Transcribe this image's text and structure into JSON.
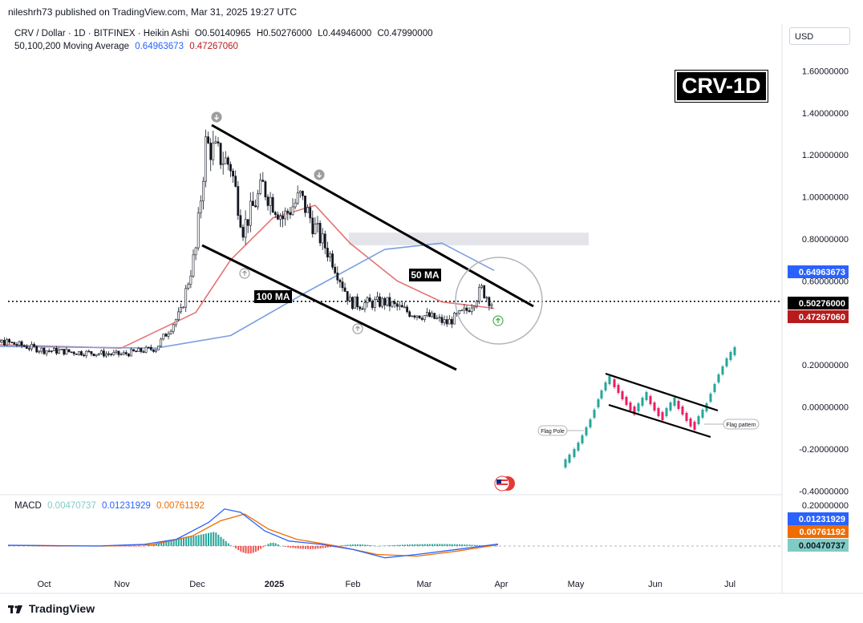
{
  "publisher_line": "nileshrh73 published on TradingView.com, Mar 31, 2025 19:27 UTC",
  "header": {
    "symbol": "CRV / Dollar · 1D · BITFINEX · Heikin Ashi",
    "open": "O0.50140965",
    "high": "H0.50276000",
    "low": "L0.44946000",
    "close": "C0.47990000",
    "ma_label": "50,100,200 Moving Average",
    "ma_value_1": "0.64963673",
    "ma_value_2": "0.47267060"
  },
  "currency": "USD",
  "badge": "CRV-1D",
  "annotations": {
    "ma50": "50 MA",
    "ma100": "100 MA",
    "flag_pole": "Flag Pole",
    "flag_pattern": "Flag pattern"
  },
  "macd": {
    "label": "MACD",
    "hist": "0.00470737",
    "macd": "0.01231929",
    "signal": "0.00761192",
    "axis_ticks": [
      "0.20000000"
    ],
    "badges": [
      {
        "value": "0.01231929",
        "color": "#2962ff"
      },
      {
        "value": "0.00761192",
        "color": "#ef6c00"
      },
      {
        "value": "0.00470737",
        "color": "#80cbc4"
      }
    ]
  },
  "footer": "TradingView",
  "colors": {
    "bull": "#131722",
    "ma_red": "#e57373",
    "ma_blue": "#7b9fe0",
    "macd_blue": "#2962ff",
    "macd_orange": "#ef6c00",
    "hist_pos": "#26a69a",
    "hist_neg": "#ef5350"
  },
  "chart_data": {
    "type": "line",
    "title": "CRV / Dollar · 1D · BITFINEX · Heikin Ashi",
    "ylim": [
      -0.4,
      1.7
    ],
    "y_ticks": [
      "1.60000000",
      "1.40000000",
      "1.20000000",
      "1.00000000",
      "0.80000000",
      "0.60000000",
      "0.20000000",
      "0.00000000",
      "-0.20000000",
      "-0.40000000"
    ],
    "x_ticks": [
      "Oct",
      "Nov",
      "Dec",
      "2025",
      "Feb",
      "Mar",
      "Apr",
      "May",
      "Jun",
      "Jul"
    ],
    "price_badges": [
      {
        "value": "0.64963673",
        "color": "#2962ff"
      },
      {
        "value": "0.50276000",
        "color": "#000000"
      },
      {
        "value": "0.47267060",
        "color": "#b71c1c"
      }
    ],
    "series": [
      {
        "name": "CRV / Dollar",
        "x": [
          "2024-09-01",
          "2024-09-15",
          "2024-10-01",
          "2024-10-15",
          "2024-11-01",
          "2024-11-15",
          "2024-11-25",
          "2024-12-01",
          "2024-12-05",
          "2024-12-10",
          "2024-12-15",
          "2024-12-20",
          "2024-12-28",
          "2025-01-05",
          "2025-01-12",
          "2025-01-18",
          "2025-01-25",
          "2025-02-01",
          "2025-02-05",
          "2025-02-15",
          "2025-02-25",
          "2025-03-05",
          "2025-03-12",
          "2025-03-20",
          "2025-03-26",
          "2025-03-31"
        ],
        "values": [
          0.28,
          0.31,
          0.27,
          0.26,
          0.25,
          0.28,
          0.45,
          0.75,
          1.25,
          1.2,
          1.15,
          0.85,
          1.05,
          0.9,
          1.0,
          0.85,
          0.7,
          0.5,
          0.49,
          0.5,
          0.45,
          0.43,
          0.4,
          0.46,
          0.56,
          0.48
        ]
      },
      {
        "name": "50 MA",
        "x": [
          "2024-09-01",
          "2024-11-01",
          "2024-12-01",
          "2024-12-15",
          "2025-01-01",
          "2025-01-18",
          "2025-02-01",
          "2025-02-20",
          "2025-03-10",
          "2025-03-31"
        ],
        "values": [
          0.3,
          0.28,
          0.45,
          0.7,
          0.9,
          0.96,
          0.78,
          0.6,
          0.5,
          0.47
        ]
      },
      {
        "name": "100 MA",
        "x": [
          "2024-09-01",
          "2024-11-15",
          "2024-12-15",
          "2025-01-15",
          "2025-02-15",
          "2025-03-10",
          "2025-03-31"
        ],
        "values": [
          0.29,
          0.28,
          0.34,
          0.55,
          0.75,
          0.78,
          0.65
        ]
      }
    ]
  }
}
